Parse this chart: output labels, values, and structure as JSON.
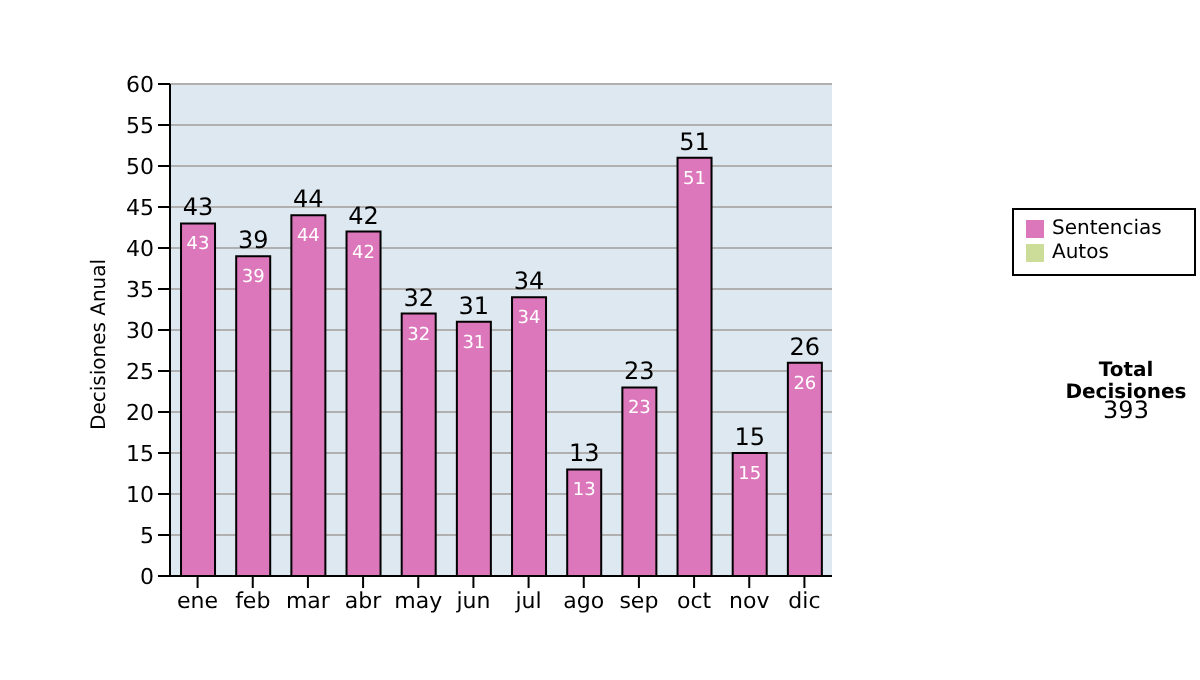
{
  "chart_data": {
    "type": "bar",
    "stacked": true,
    "ylabel": "Decisiones Anual",
    "categories": [
      "ene",
      "feb",
      "mar",
      "abr",
      "may",
      "jun",
      "jul",
      "ago",
      "sep",
      "oct",
      "nov",
      "dic"
    ],
    "series": [
      {
        "name": "Sentencias",
        "color": "#dd77bb",
        "values": [
          43,
          39,
          44,
          42,
          32,
          31,
          34,
          13,
          23,
          51,
          15,
          26
        ],
        "value_labels": [
          "43",
          "39",
          "44",
          "42",
          "32",
          "31",
          "34",
          "13",
          "23",
          "51",
          "15",
          "26"
        ]
      },
      {
        "name": "Autos",
        "color": "#ccdd99",
        "values": [
          0,
          0,
          0,
          0,
          0,
          0,
          0,
          0,
          0,
          0,
          0,
          0
        ]
      }
    ],
    "totals": [
      "43",
      "39",
      "44",
      "42",
      "32",
      "31",
      "34",
      "13",
      "23",
      "51",
      "15",
      "26"
    ],
    "ylim": [
      0,
      60
    ],
    "yticks": [
      0,
      5,
      10,
      15,
      20,
      25,
      30,
      35,
      40,
      45,
      50,
      55,
      60
    ],
    "grid": "y",
    "legend": "right",
    "annotations": [
      "Total Decisiones",
      "393"
    ]
  }
}
